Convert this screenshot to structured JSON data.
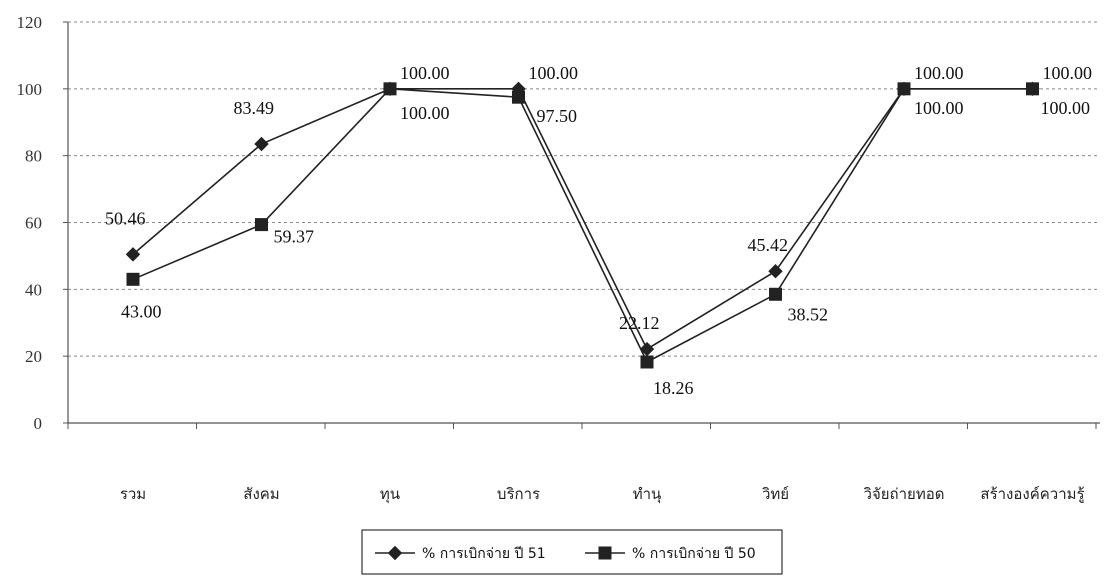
{
  "chart_data": {
    "type": "line",
    "title": "",
    "xlabel": "",
    "ylabel": "",
    "ylim": [
      0,
      120
    ],
    "yticks": [
      "0",
      "20",
      "40",
      "60",
      "80",
      "100",
      "120"
    ],
    "grid": "horizontal-dashed",
    "legend_position": "bottom-center",
    "categories": [
      "รวม",
      "สังคม",
      "ทุน",
      "บริการ",
      "ทำนุ",
      "วิทย์",
      "วิจัยถ่ายทอด",
      "สร้างองค์ความรู้"
    ],
    "series": [
      {
        "name": "% การเบิกจ่าย ปี 51",
        "marker": "diamond",
        "color": "#222222",
        "values": [
          50.46,
          83.49,
          100.0,
          100.0,
          22.12,
          45.42,
          100.0,
          100.0
        ],
        "labels": [
          "50.46",
          "83.49",
          "100.00",
          "100.00",
          "22.12",
          "45.42",
          "100.00",
          "100.00"
        ]
      },
      {
        "name": "% การเบิกจ่าย ปี 50",
        "marker": "square",
        "color": "#222222",
        "values": [
          43.0,
          59.37,
          100.0,
          97.5,
          18.26,
          38.52,
          100.0,
          100.0
        ],
        "labels": [
          "43.00",
          "59.37",
          "100.00",
          "97.50",
          "18.26",
          "38.52",
          "100.00",
          "100.00"
        ]
      }
    ]
  }
}
